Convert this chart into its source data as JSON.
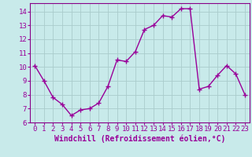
{
  "x": [
    0,
    1,
    2,
    3,
    4,
    5,
    6,
    7,
    8,
    9,
    10,
    11,
    12,
    13,
    14,
    15,
    16,
    17,
    18,
    19,
    20,
    21,
    22,
    23
  ],
  "y": [
    10.1,
    9.0,
    7.8,
    7.3,
    6.5,
    6.9,
    7.0,
    7.4,
    8.6,
    10.5,
    10.4,
    11.1,
    12.7,
    13.0,
    13.7,
    13.6,
    14.2,
    14.2,
    8.4,
    8.6,
    9.4,
    10.1,
    9.5,
    8.0
  ],
  "line_color": "#990099",
  "marker": "+",
  "marker_size": 4,
  "background_color": "#c8eaea",
  "grid_color": "#aacccc",
  "xlabel": "Windchill (Refroidissement éolien,°C)",
  "xlim": [
    -0.5,
    23.5
  ],
  "ylim": [
    6,
    14.6
  ],
  "yticks": [
    6,
    7,
    8,
    9,
    10,
    11,
    12,
    13,
    14
  ],
  "xticks": [
    0,
    1,
    2,
    3,
    4,
    5,
    6,
    7,
    8,
    9,
    10,
    11,
    12,
    13,
    14,
    15,
    16,
    17,
    18,
    19,
    20,
    21,
    22,
    23
  ],
  "tick_fontsize": 6.5,
  "label_fontsize": 7,
  "spine_color": "#880088",
  "line_width": 1.0
}
